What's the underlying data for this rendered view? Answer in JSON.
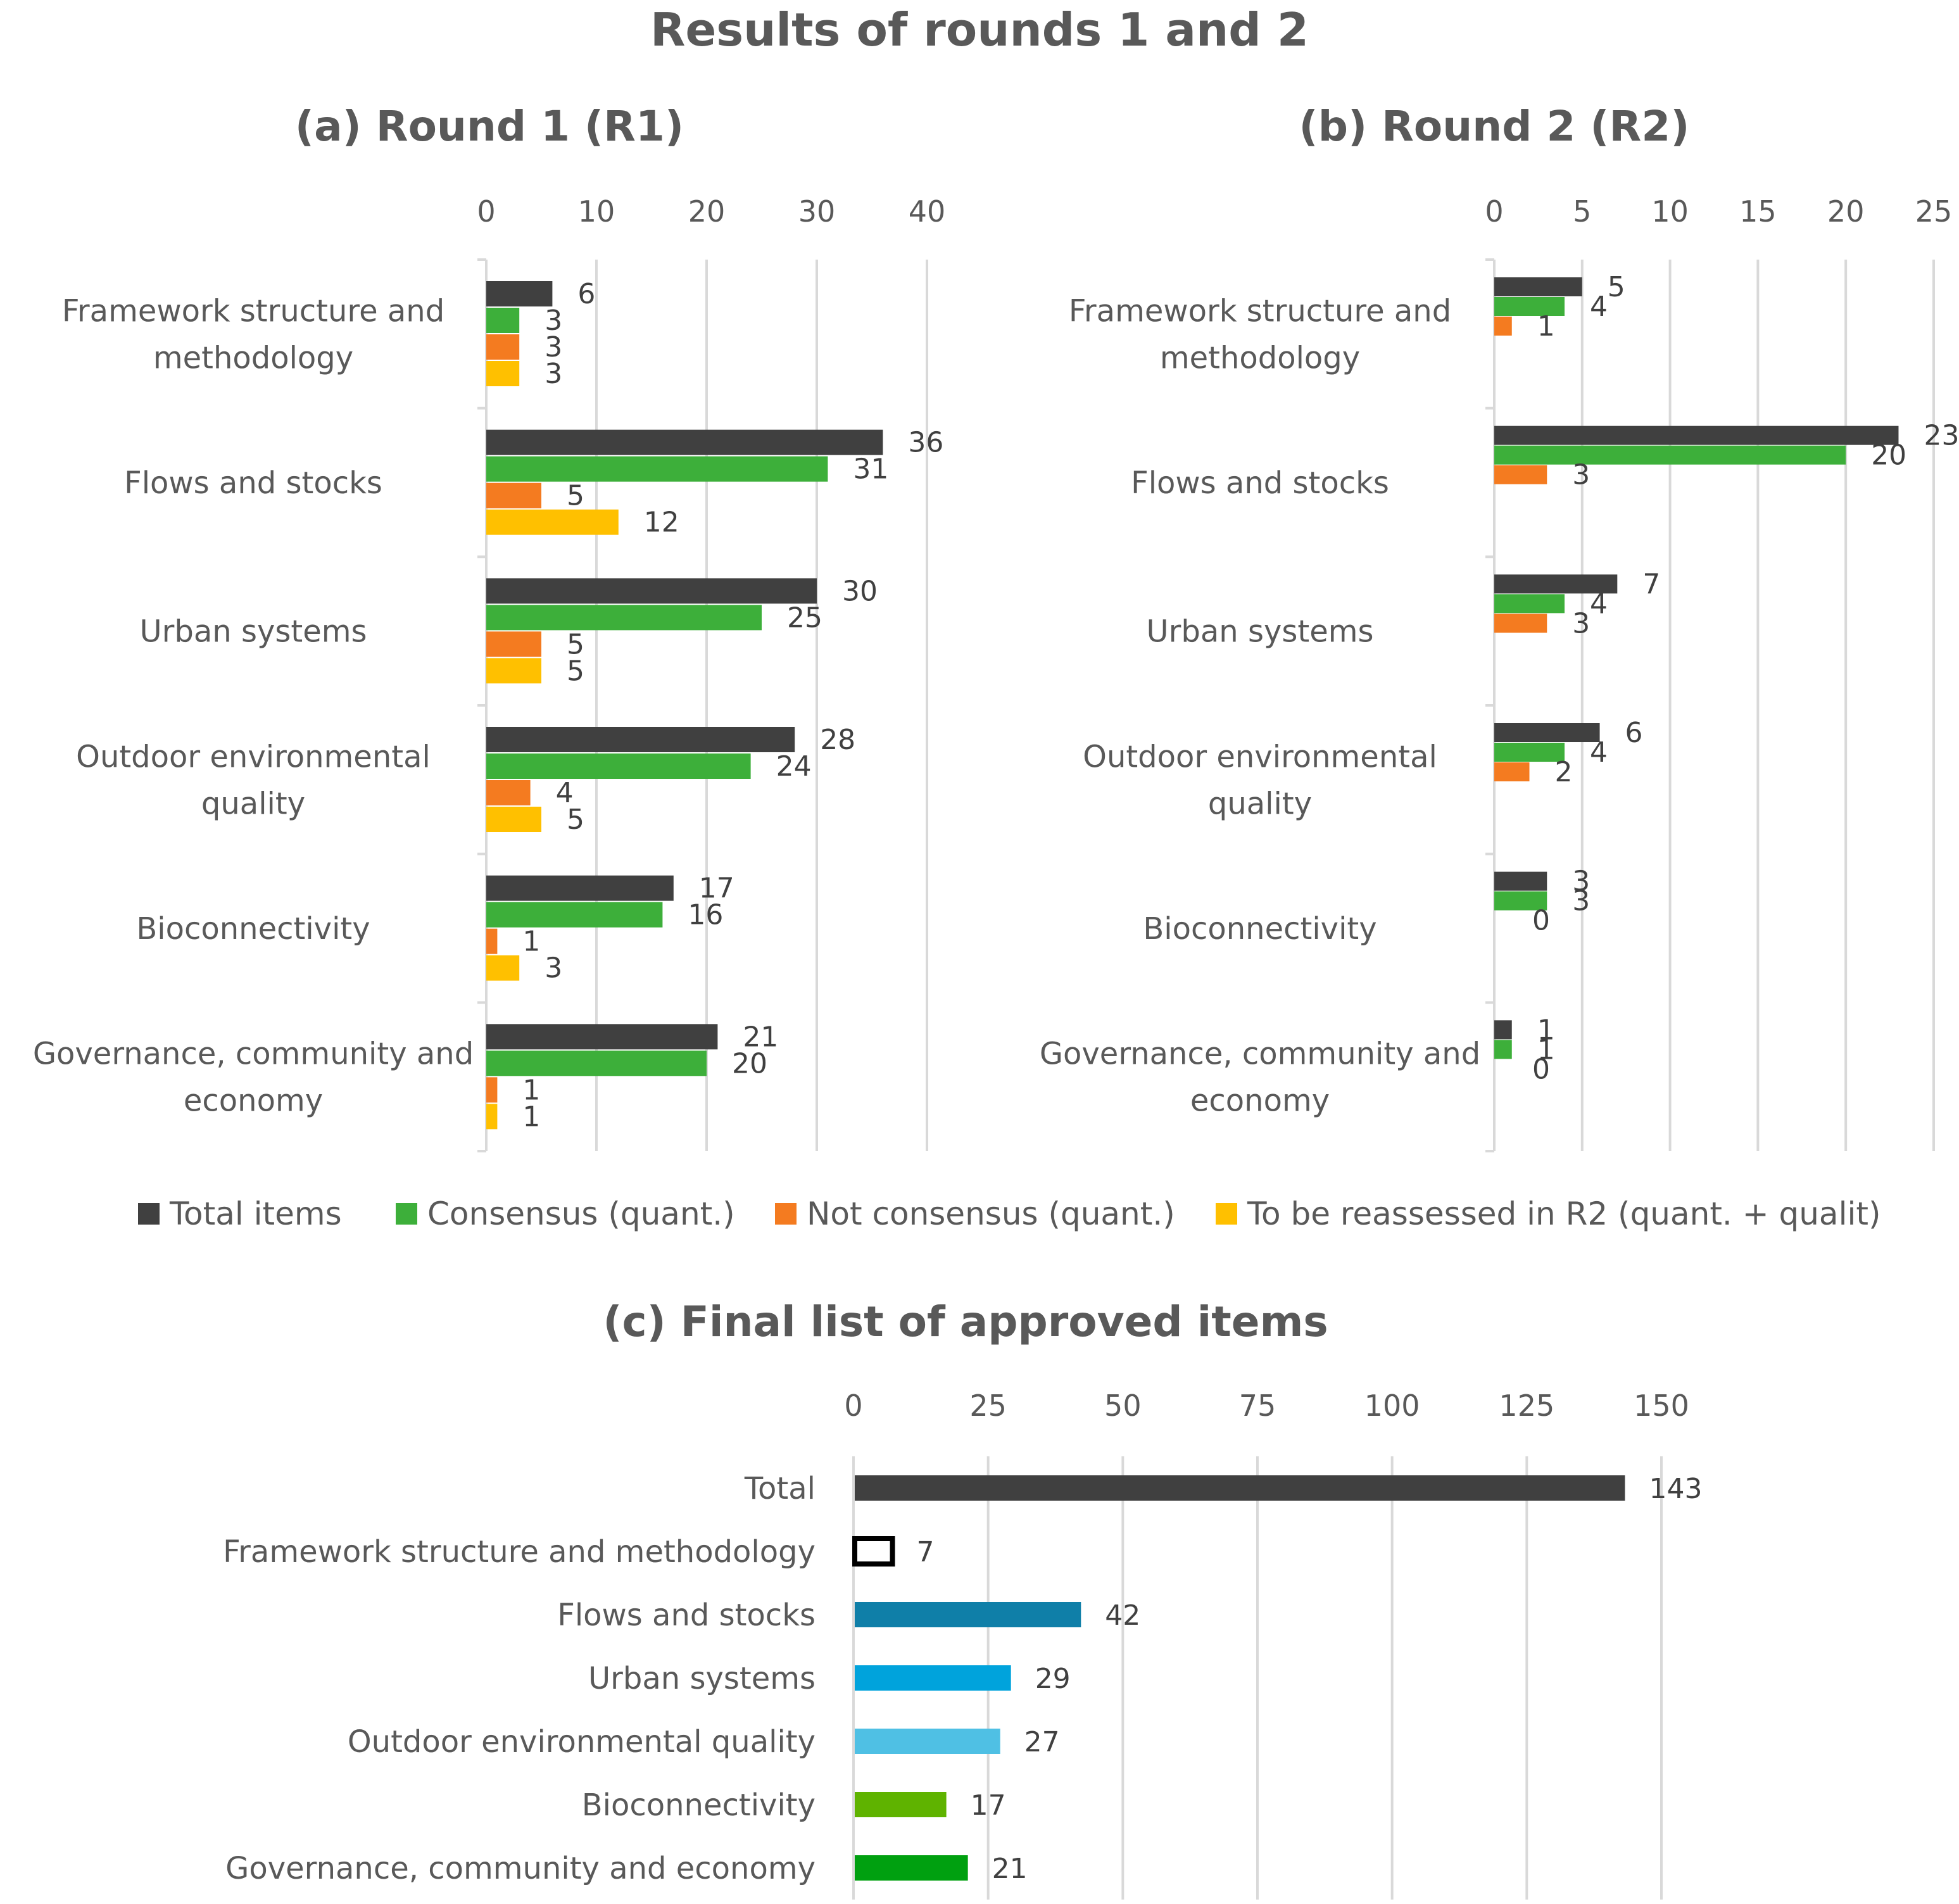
{
  "title": "Results of rounds 1 and 2",
  "legend": [
    {
      "label": "Total items",
      "color": "#404040"
    },
    {
      "label": "Consensus (quant.)",
      "color": "#3daf3a"
    },
    {
      "label": "Not consensus (quant.)",
      "color": "#f47b20"
    },
    {
      "label": "To be reassessed in R2  (quant. + qualit)",
      "color": "#ffc000"
    }
  ],
  "chart_data": [
    {
      "type": "bar",
      "orientation": "horizontal",
      "title": "(a) Round 1 (R1)",
      "categories": [
        [
          "Framework structure and",
          "methodology"
        ],
        [
          "Flows and stocks"
        ],
        [
          "Urban systems"
        ],
        [
          "Outdoor environmental",
          "quality"
        ],
        [
          "Bioconnectivity"
        ],
        [
          "Governance, community and",
          "economy"
        ]
      ],
      "xlim": [
        0,
        40
      ],
      "ticks": [
        0,
        10,
        20,
        30,
        40
      ],
      "grid": true,
      "series": [
        {
          "name": "Total items",
          "color": "#404040",
          "values": [
            6,
            36,
            30,
            28,
            17,
            21
          ]
        },
        {
          "name": "Consensus (quant.)",
          "color": "#3daf3a",
          "values": [
            3,
            31,
            25,
            24,
            16,
            20
          ]
        },
        {
          "name": "Not consensus (quant.)",
          "color": "#f47b20",
          "values": [
            3,
            5,
            5,
            4,
            1,
            1
          ]
        },
        {
          "name": "To be reassessed in R2  (quant. + qualit)",
          "color": "#ffc000",
          "values": [
            3,
            12,
            5,
            5,
            3,
            1
          ]
        }
      ]
    },
    {
      "type": "bar",
      "orientation": "horizontal",
      "title": "(b) Round 2 (R2)",
      "categories": [
        [
          "Framework structure and",
          "methodology"
        ],
        [
          "Flows and stocks"
        ],
        [
          "Urban systems"
        ],
        [
          "Outdoor environmental",
          "quality"
        ],
        [
          "Bioconnectivity"
        ],
        [
          "Governance, community and",
          "economy"
        ]
      ],
      "xlim": [
        0,
        25
      ],
      "ticks": [
        0,
        5,
        10,
        15,
        20,
        25
      ],
      "grid": true,
      "series": [
        {
          "name": "Total items",
          "color": "#404040",
          "values": [
            5,
            23,
            7,
            6,
            3,
            1
          ]
        },
        {
          "name": "Consensus (quant.)",
          "color": "#3daf3a",
          "values": [
            4,
            20,
            4,
            4,
            3,
            1
          ]
        },
        {
          "name": "Not consensus (quant.)",
          "color": "#f47b20",
          "values": [
            1,
            3,
            3,
            2,
            0,
            0
          ]
        }
      ]
    },
    {
      "type": "bar",
      "orientation": "horizontal",
      "title": "(c) Final list of approved items",
      "categories": [
        "Total",
        "Framework structure and methodology",
        "Flows and stocks",
        "Urban systems",
        "Outdoor environmental quality",
        "Bioconnectivity",
        "Governance, community and economy"
      ],
      "values": [
        143,
        7,
        42,
        29,
        27,
        17,
        21
      ],
      "colors": [
        "#404040",
        "#ffffff",
        "#0f7fa8",
        "#00a3dc",
        "#4fc0e4",
        "#5fb300",
        "#00a010"
      ],
      "xlim": [
        0,
        150
      ],
      "ticks": [
        0,
        25,
        50,
        75,
        100,
        125,
        150
      ],
      "grid": true
    }
  ]
}
